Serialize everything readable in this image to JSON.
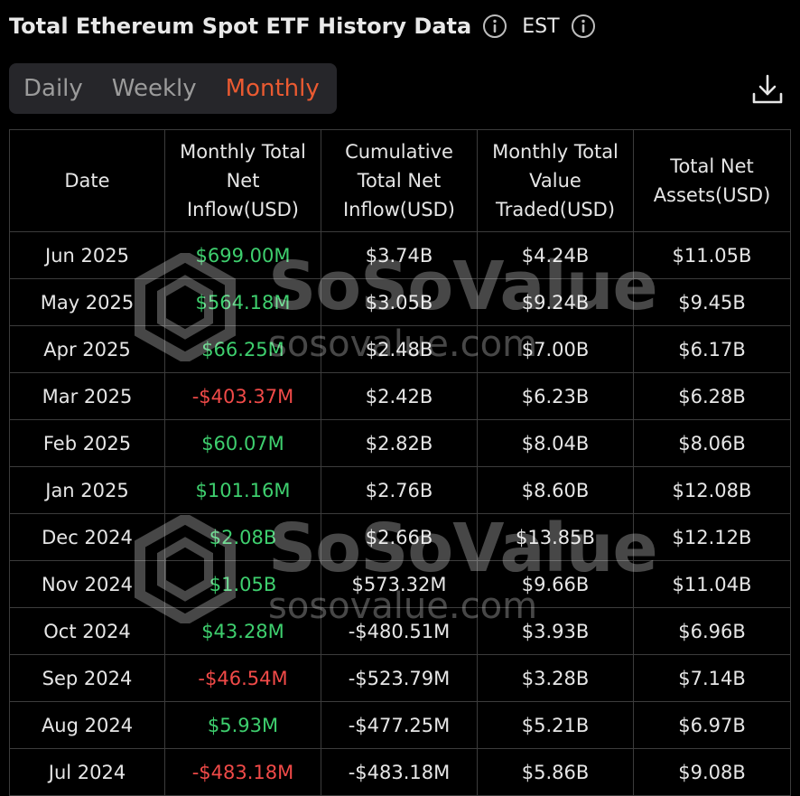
{
  "header": {
    "title": "Total Ethereum Spot ETF History Data",
    "timezone": "EST",
    "info_icon": "info-circle-icon"
  },
  "tabs": [
    {
      "label": "Daily",
      "active": false
    },
    {
      "label": "Weekly",
      "active": false
    },
    {
      "label": "Monthly",
      "active": true
    }
  ],
  "download_icon": "download-icon",
  "colors": {
    "accent": "#ea5a31",
    "positive": "#3ecf6e",
    "negative": "#f04a48",
    "background": "#000000"
  },
  "table": {
    "headers": [
      "Date",
      "Monthly Total Net Inflow(USD)",
      "Cumulative Total Net Inflow(USD)",
      "Monthly Total Value Traded(USD)",
      "Total Net Assets(USD)"
    ],
    "rows": [
      {
        "date": "Jun 2025",
        "inflow": "$699.00M",
        "cumulative": "$3.74B",
        "traded": "$4.24B",
        "assets": "$11.05B"
      },
      {
        "date": "May 2025",
        "inflow": "$564.18M",
        "cumulative": "$3.05B",
        "traded": "$9.24B",
        "assets": "$9.45B"
      },
      {
        "date": "Apr 2025",
        "inflow": "$66.25M",
        "cumulative": "$2.48B",
        "traded": "$7.00B",
        "assets": "$6.17B"
      },
      {
        "date": "Mar 2025",
        "inflow": "-$403.37M",
        "cumulative": "$2.42B",
        "traded": "$6.23B",
        "assets": "$6.28B"
      },
      {
        "date": "Feb 2025",
        "inflow": "$60.07M",
        "cumulative": "$2.82B",
        "traded": "$8.04B",
        "assets": "$8.06B"
      },
      {
        "date": "Jan 2025",
        "inflow": "$101.16M",
        "cumulative": "$2.76B",
        "traded": "$8.60B",
        "assets": "$12.08B"
      },
      {
        "date": "Dec 2024",
        "inflow": "$2.08B",
        "cumulative": "$2.66B",
        "traded": "$13.85B",
        "assets": "$12.12B"
      },
      {
        "date": "Nov 2024",
        "inflow": "$1.05B",
        "cumulative": "$573.32M",
        "traded": "$9.66B",
        "assets": "$11.04B"
      },
      {
        "date": "Oct 2024",
        "inflow": "$43.28M",
        "cumulative": "-$480.51M",
        "traded": "$3.93B",
        "assets": "$6.96B"
      },
      {
        "date": "Sep 2024",
        "inflow": "-$46.54M",
        "cumulative": "-$523.79M",
        "traded": "$3.28B",
        "assets": "$7.14B"
      },
      {
        "date": "Aug 2024",
        "inflow": "$5.93M",
        "cumulative": "-$477.25M",
        "traded": "$5.21B",
        "assets": "$6.97B"
      },
      {
        "date": "Jul 2024",
        "inflow": "-$483.18M",
        "cumulative": "-$483.18M",
        "traded": "$5.86B",
        "assets": "$9.08B"
      }
    ]
  },
  "watermark": {
    "name": "SoSoValue",
    "url": "sosovalue.com"
  }
}
